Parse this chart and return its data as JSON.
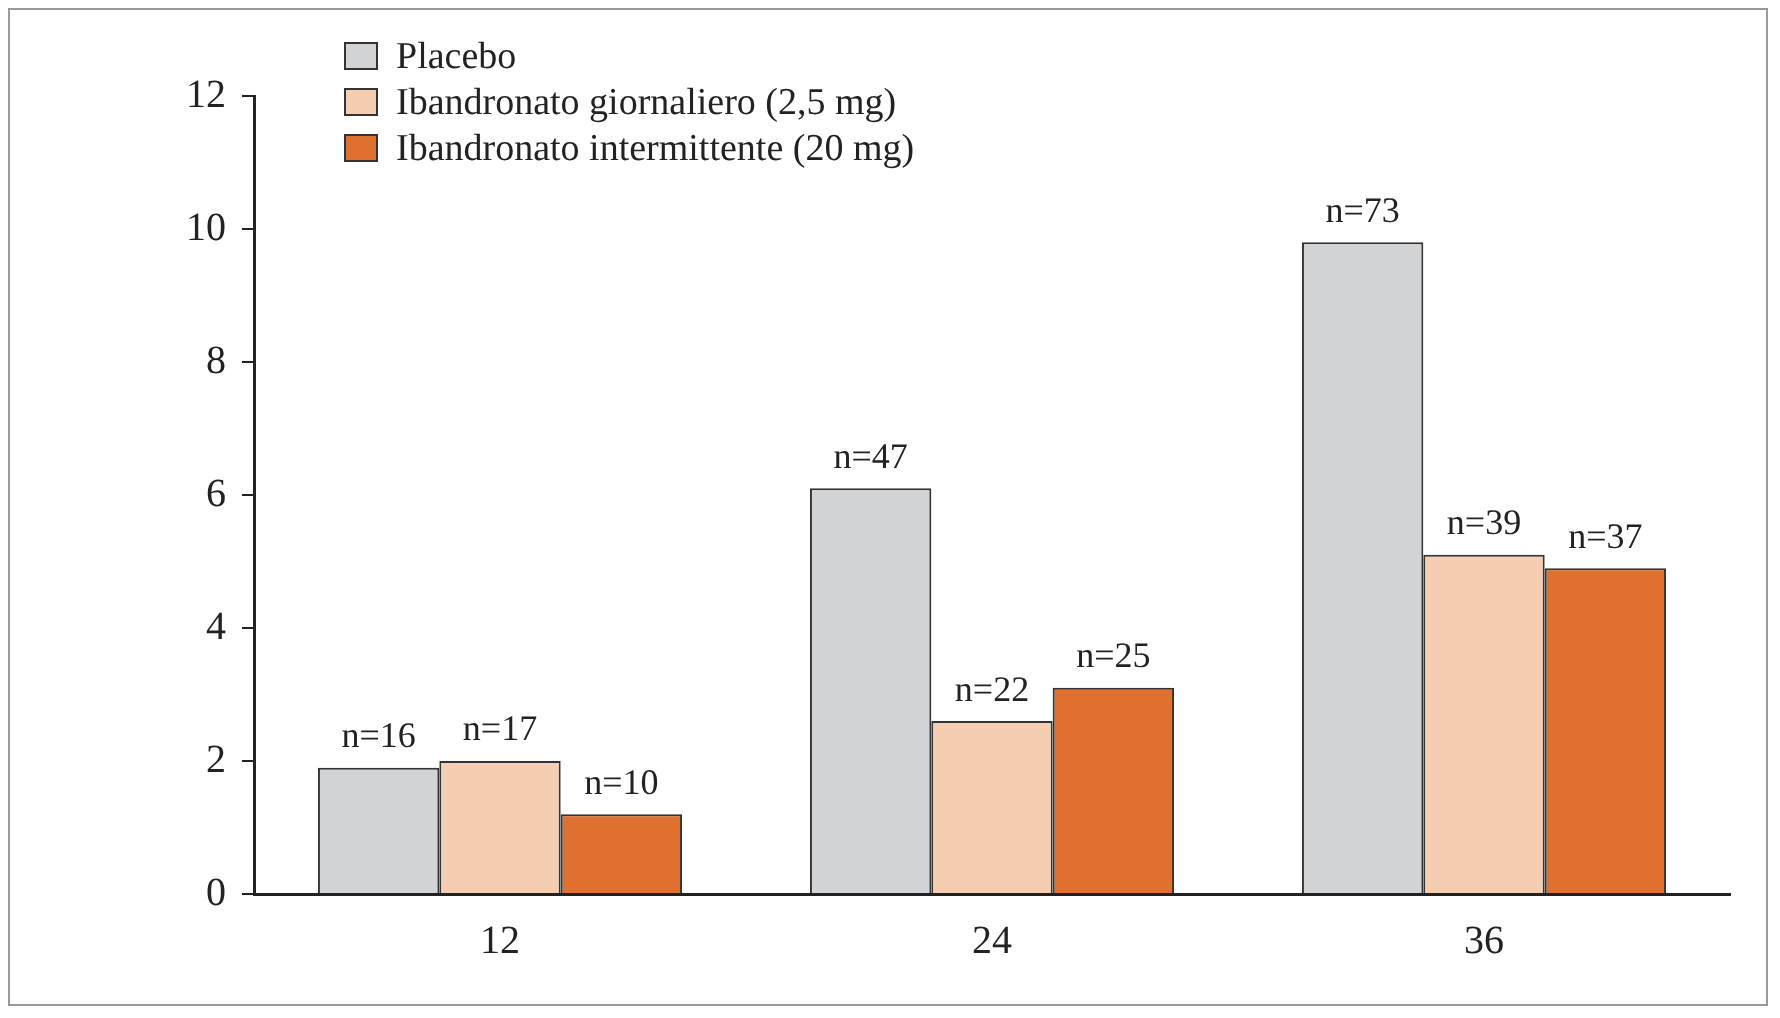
{
  "chart_data": {
    "type": "bar",
    "categories": [
      "12",
      "24",
      "36"
    ],
    "series": [
      {
        "name": "Placebo",
        "color": "#d1d3d4",
        "values": [
          1.9,
          6.1,
          9.8
        ]
      },
      {
        "name": "Ibandronato giornaliero (2,5 mg)",
        "color": "#f5cdb0",
        "values": [
          2.0,
          2.6,
          5.1
        ]
      },
      {
        "name": "Ibandronato intermittente (20 mg)",
        "color": "#e07030",
        "values": [
          1.2,
          3.1,
          4.9
        ]
      }
    ],
    "annotations": [
      "n=16",
      "n=17",
      "n=10",
      "n=47",
      "n=22",
      "n=25",
      "n=73",
      "n=39",
      "n=37"
    ],
    "ylim": [
      0,
      12
    ],
    "yticks": [
      0,
      2,
      4,
      6,
      8,
      10,
      12
    ],
    "grid": false,
    "legend": "top left"
  }
}
